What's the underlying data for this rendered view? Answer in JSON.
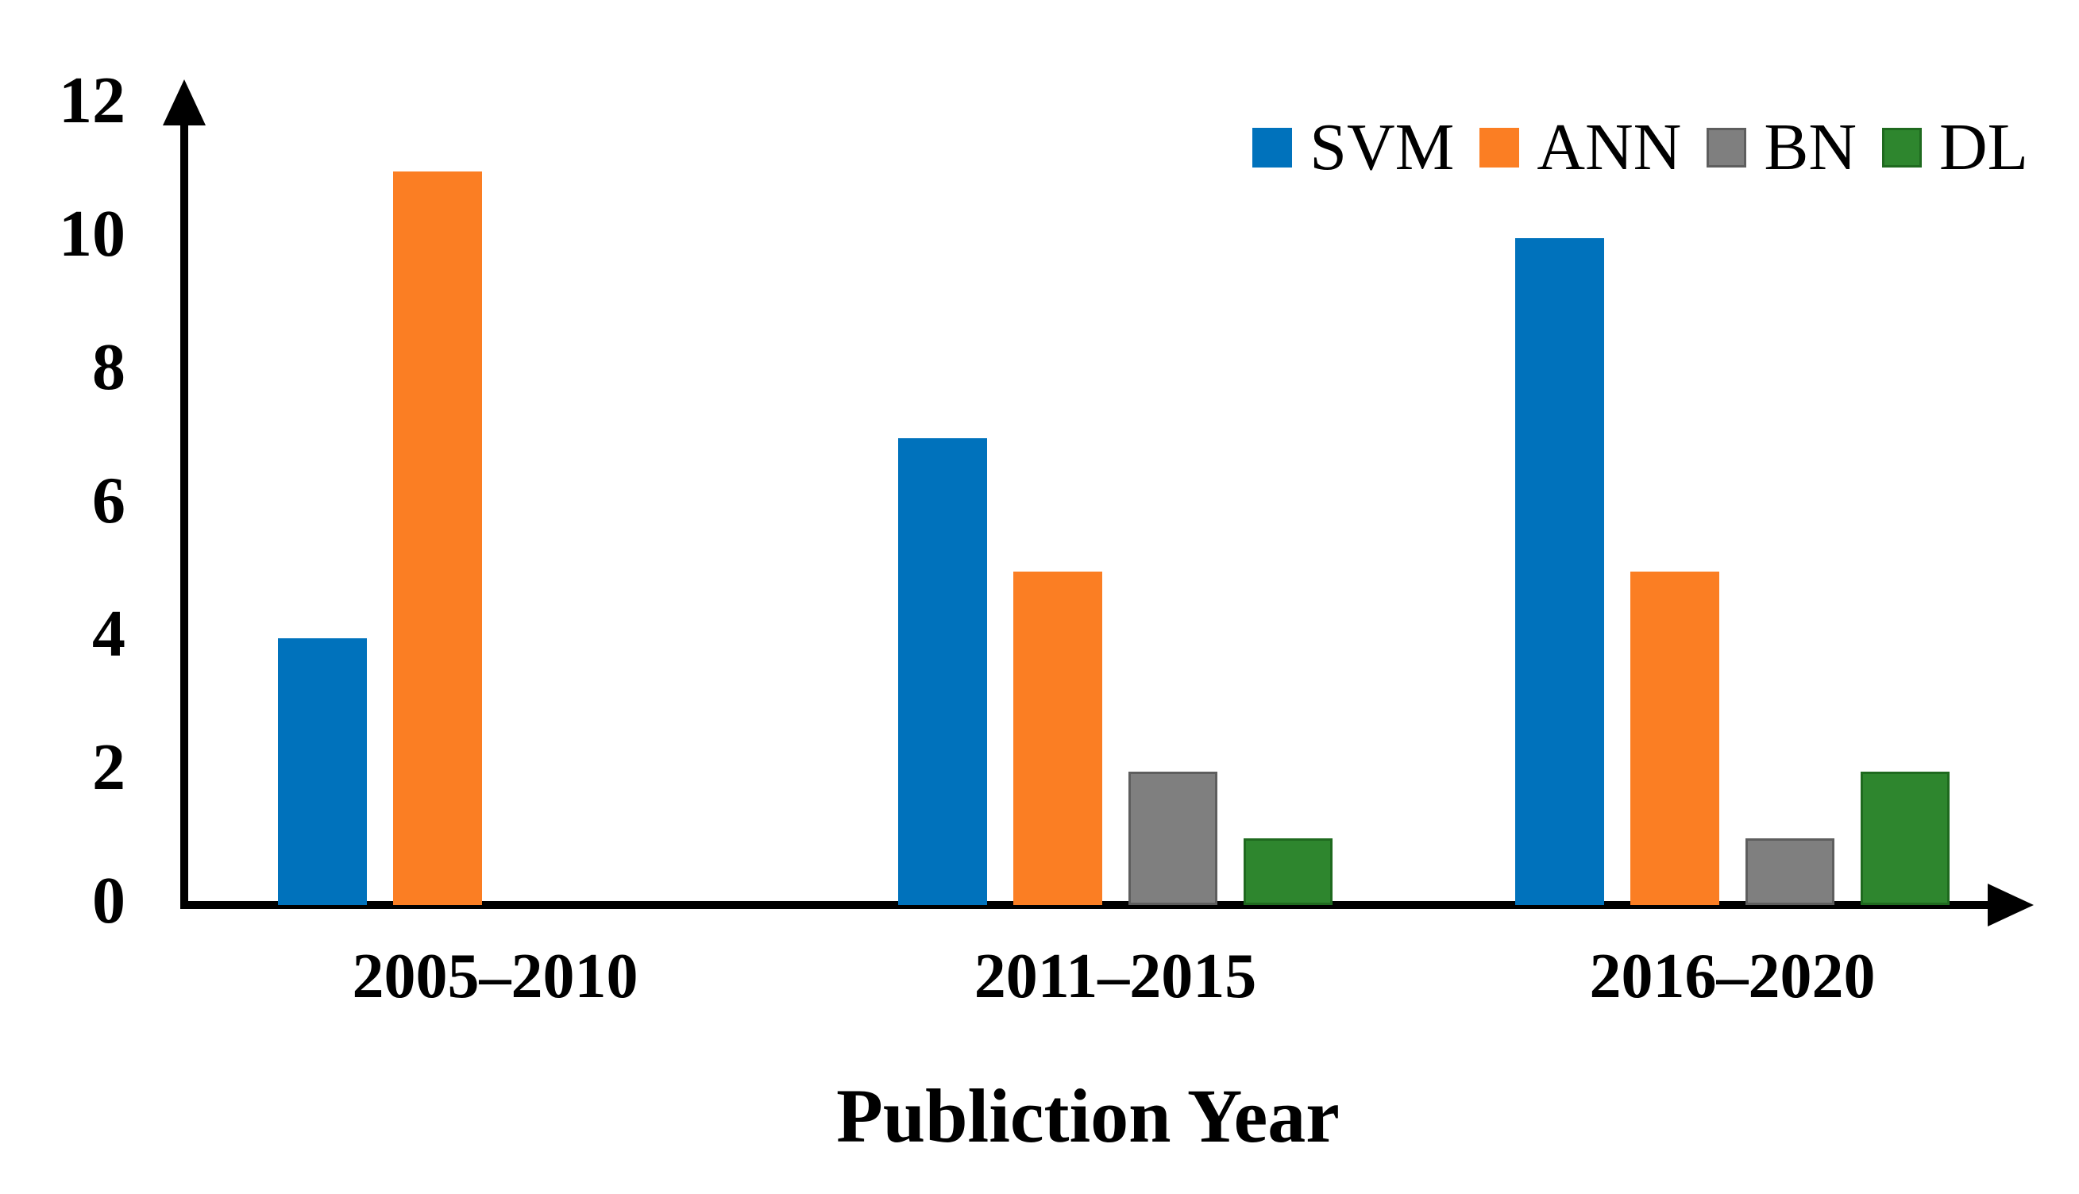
{
  "chart_data": {
    "type": "bar",
    "categories": [
      "2005–2010",
      "2011–2015",
      "2016–2020"
    ],
    "series": [
      {
        "name": "SVM",
        "color": "#0072BC",
        "border": "#0072BC",
        "values": [
          4,
          7,
          10
        ]
      },
      {
        "name": "ANN",
        "color": "#FB7E23",
        "border": "#FB7E23",
        "values": [
          11,
          5,
          5
        ]
      },
      {
        "name": "BN",
        "color": "#7F7F7F",
        "border": "#5E5E5E",
        "values": [
          0,
          2,
          1
        ]
      },
      {
        "name": "DL",
        "color": "#2E862E",
        "border": "#1F6A1F",
        "values": [
          0,
          1,
          2
        ]
      }
    ],
    "title": "",
    "xlabel": "Publiction Year",
    "ylabel": "",
    "ylim": [
      0,
      12
    ],
    "yticks": [
      0,
      2,
      4,
      6,
      8,
      10,
      12
    ],
    "legend_position": "top-right",
    "grid": false,
    "axis_color": "#000000",
    "text_color": "#000000"
  }
}
